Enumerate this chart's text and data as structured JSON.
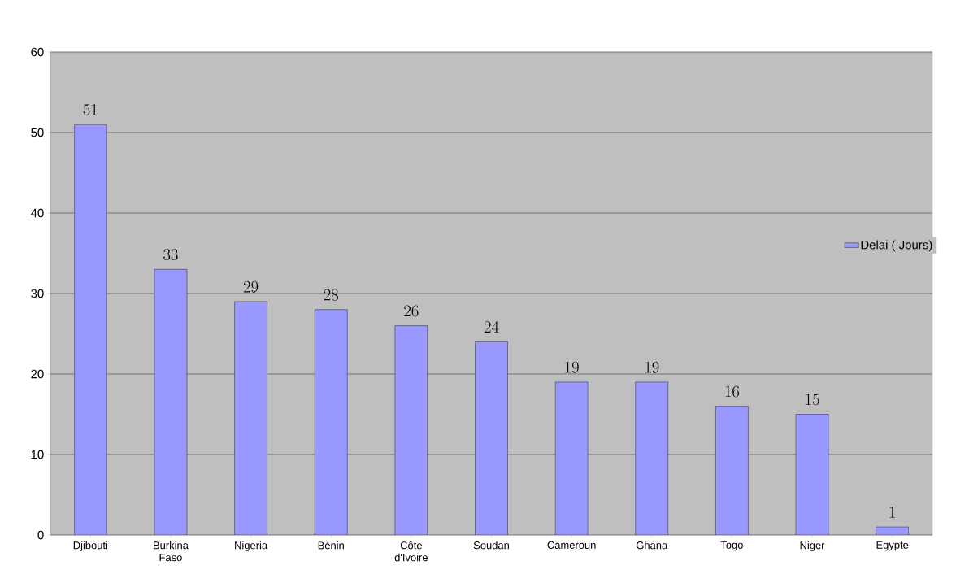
{
  "chart_data": {
    "type": "bar",
    "categories": [
      "Djibouti",
      "Burkina Faso",
      "Nigeria",
      "Bénin",
      "Côte d'Ivoire",
      "Soudan",
      "Cameroun",
      "Ghana",
      "Togo",
      "Niger",
      "Egypte"
    ],
    "series": [
      {
        "name": "Delai ( Jours)",
        "color": "#9999ff",
        "values": [
          51,
          33,
          29,
          28,
          26,
          24,
          19,
          19,
          16,
          15,
          1
        ]
      }
    ],
    "ylim": [
      0,
      60
    ],
    "yticks": [
      0,
      10,
      20,
      30,
      40,
      50,
      60
    ],
    "grid": "y",
    "legend": "right",
    "data_labels": true
  }
}
